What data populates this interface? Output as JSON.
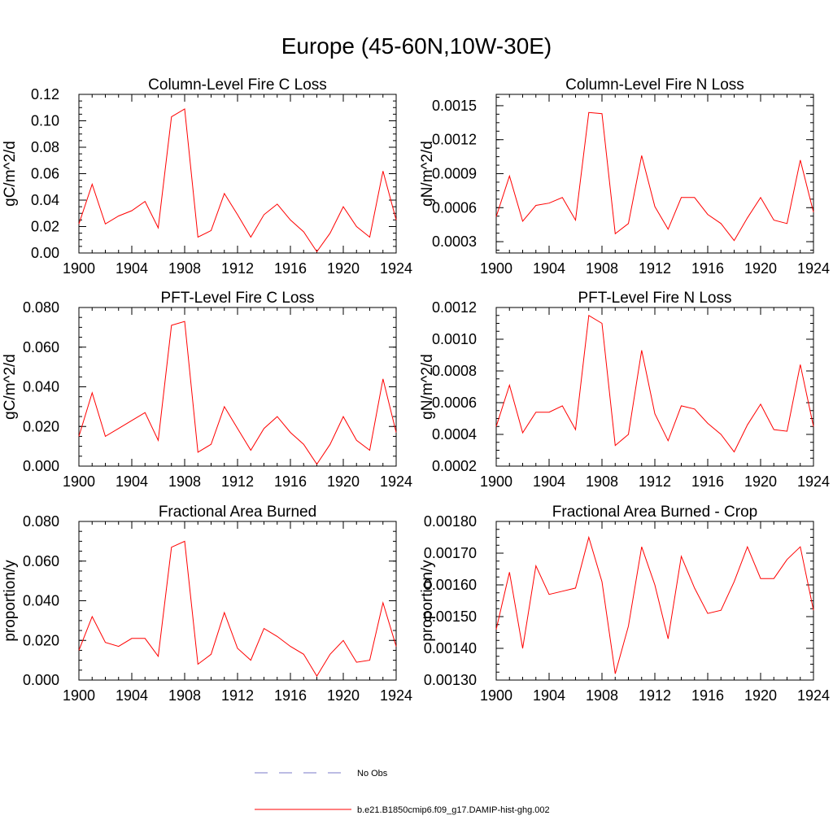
{
  "figure": {
    "title": "Europe (45-60N,10W-30E)",
    "legend": {
      "placement": "bottom-center",
      "entries": [
        {
          "label": "No Obs",
          "color": "#7878c8",
          "dash": "dashed"
        },
        {
          "label": "b.e21.B1850cmip6.f09_g17.DAMIP-hist-ghg.002",
          "color": "#ff0000",
          "dash": "solid"
        }
      ]
    }
  },
  "chart_data": [
    {
      "type": "line",
      "title": "Column-Level Fire C Loss",
      "xlabel": "",
      "ylabel": "gC/m^2/d",
      "xlim": [
        1900,
        1924
      ],
      "ylim": [
        0,
        0.12
      ],
      "xticks": [
        1900,
        1904,
        1908,
        1912,
        1916,
        1920,
        1924
      ],
      "yticks": [
        0,
        0.02,
        0.04,
        0.06,
        0.08,
        0.1,
        0.12
      ],
      "ytick_labels": [
        "0.00",
        "0.02",
        "0.04",
        "0.06",
        "0.08",
        "0.10",
        "0.12"
      ],
      "x": [
        1900,
        1901,
        1902,
        1903,
        1904,
        1905,
        1906,
        1907,
        1908,
        1909,
        1910,
        1911,
        1912,
        1913,
        1914,
        1915,
        1916,
        1917,
        1918,
        1919,
        1920,
        1921,
        1922,
        1923,
        1924
      ],
      "series": [
        {
          "values": [
            0.022,
            0.052,
            0.022,
            0.028,
            0.032,
            0.039,
            0.019,
            0.103,
            0.109,
            0.012,
            0.017,
            0.045,
            0.029,
            0.012,
            0.029,
            0.037,
            0.025,
            0.016,
            0.001,
            0.015,
            0.035,
            0.02,
            0.012,
            0.062,
            0.025
          ],
          "color": "#ff0000"
        }
      ]
    },
    {
      "type": "line",
      "title": "Column-Level Fire N Loss",
      "xlabel": "",
      "ylabel": "gN/m^2/d",
      "xlim": [
        1900,
        1924
      ],
      "ylim": [
        0.0002,
        0.0016
      ],
      "xticks": [
        1900,
        1904,
        1908,
        1912,
        1916,
        1920,
        1924
      ],
      "yticks": [
        0.0003,
        0.0006,
        0.0009,
        0.0012,
        0.0015
      ],
      "ytick_labels": [
        "0.0003",
        "0.0006",
        "0.0009",
        "0.0012",
        "0.0015"
      ],
      "x": [
        1900,
        1901,
        1902,
        1903,
        1904,
        1905,
        1906,
        1907,
        1908,
        1909,
        1910,
        1911,
        1912,
        1913,
        1914,
        1915,
        1916,
        1917,
        1918,
        1919,
        1920,
        1921,
        1922,
        1923,
        1924
      ],
      "series": [
        {
          "values": [
            0.00052,
            0.00088,
            0.00048,
            0.00062,
            0.00064,
            0.00069,
            0.00049,
            0.00144,
            0.00143,
            0.00037,
            0.00046,
            0.00106,
            0.00061,
            0.00041,
            0.00069,
            0.00069,
            0.00054,
            0.00046,
            0.00031,
            0.00051,
            0.00069,
            0.00049,
            0.00046,
            0.00102,
            0.00056
          ],
          "color": "#ff0000"
        }
      ]
    },
    {
      "type": "line",
      "title": "PFT-Level Fire C Loss",
      "xlabel": "",
      "ylabel": "gC/m^2/d",
      "xlim": [
        1900,
        1924
      ],
      "ylim": [
        0,
        0.08
      ],
      "xticks": [
        1900,
        1904,
        1908,
        1912,
        1916,
        1920,
        1924
      ],
      "yticks": [
        0,
        0.02,
        0.04,
        0.06,
        0.08
      ],
      "ytick_labels": [
        "0.000",
        "0.020",
        "0.040",
        "0.060",
        "0.080"
      ],
      "x": [
        1900,
        1901,
        1902,
        1903,
        1904,
        1905,
        1906,
        1907,
        1908,
        1909,
        1910,
        1911,
        1912,
        1913,
        1914,
        1915,
        1916,
        1917,
        1918,
        1919,
        1920,
        1921,
        1922,
        1923,
        1924
      ],
      "series": [
        {
          "values": [
            0.015,
            0.037,
            0.015,
            0.019,
            0.023,
            0.027,
            0.013,
            0.071,
            0.073,
            0.007,
            0.011,
            0.03,
            0.019,
            0.008,
            0.019,
            0.025,
            0.017,
            0.011,
            0.001,
            0.011,
            0.025,
            0.013,
            0.008,
            0.044,
            0.017
          ],
          "color": "#ff0000"
        }
      ]
    },
    {
      "type": "line",
      "title": "PFT-Level Fire N Loss",
      "xlabel": "",
      "ylabel": "gN/m^2/d",
      "xlim": [
        1900,
        1924
      ],
      "ylim": [
        0.0002,
        0.0012
      ],
      "xticks": [
        1900,
        1904,
        1908,
        1912,
        1916,
        1920,
        1924
      ],
      "yticks": [
        0.0002,
        0.0004,
        0.0006,
        0.0008,
        0.001,
        0.0012
      ],
      "ytick_labels": [
        "0.0002",
        "0.0004",
        "0.0006",
        "0.0008",
        "0.0010",
        "0.0012"
      ],
      "x": [
        1900,
        1901,
        1902,
        1903,
        1904,
        1905,
        1906,
        1907,
        1908,
        1909,
        1910,
        1911,
        1912,
        1913,
        1914,
        1915,
        1916,
        1917,
        1918,
        1919,
        1920,
        1921,
        1922,
        1923,
        1924
      ],
      "series": [
        {
          "values": [
            0.00045,
            0.00071,
            0.00041,
            0.00054,
            0.00054,
            0.00058,
            0.00043,
            0.00115,
            0.0011,
            0.00033,
            0.0004,
            0.00093,
            0.00053,
            0.00036,
            0.00058,
            0.00056,
            0.00047,
            0.0004,
            0.00029,
            0.00046,
            0.00059,
            0.00043,
            0.00042,
            0.00084,
            0.00045
          ],
          "color": "#ff0000"
        }
      ]
    },
    {
      "type": "line",
      "title": "Fractional Area Burned",
      "xlabel": "",
      "ylabel": "proportion/y",
      "xlim": [
        1900,
        1924
      ],
      "ylim": [
        0,
        0.08
      ],
      "xticks": [
        1900,
        1904,
        1908,
        1912,
        1916,
        1920,
        1924
      ],
      "yticks": [
        0,
        0.02,
        0.04,
        0.06,
        0.08
      ],
      "ytick_labels": [
        "0.000",
        "0.020",
        "0.040",
        "0.060",
        "0.080"
      ],
      "x": [
        1900,
        1901,
        1902,
        1903,
        1904,
        1905,
        1906,
        1907,
        1908,
        1909,
        1910,
        1911,
        1912,
        1913,
        1914,
        1915,
        1916,
        1917,
        1918,
        1919,
        1920,
        1921,
        1922,
        1923,
        1924
      ],
      "series": [
        {
          "values": [
            0.015,
            0.032,
            0.019,
            0.017,
            0.021,
            0.021,
            0.012,
            0.067,
            0.07,
            0.008,
            0.013,
            0.034,
            0.016,
            0.01,
            0.026,
            0.022,
            0.017,
            0.013,
            0.002,
            0.013,
            0.02,
            0.009,
            0.01,
            0.039,
            0.017
          ],
          "color": "#ff0000"
        }
      ]
    },
    {
      "type": "line",
      "title": "Fractional Area Burned - Crop",
      "xlabel": "",
      "ylabel": "proportion/y",
      "xlim": [
        1900,
        1924
      ],
      "ylim": [
        0.0013,
        0.0018
      ],
      "xticks": [
        1900,
        1904,
        1908,
        1912,
        1916,
        1920,
        1924
      ],
      "yticks": [
        0.0013,
        0.0014,
        0.0015,
        0.0016,
        0.0017,
        0.0018
      ],
      "ytick_labels": [
        "0.00130",
        "0.00140",
        "0.00150",
        "0.00160",
        "0.00170",
        "0.00180"
      ],
      "x": [
        1900,
        1901,
        1902,
        1903,
        1904,
        1905,
        1906,
        1907,
        1908,
        1909,
        1910,
        1911,
        1912,
        1913,
        1914,
        1915,
        1916,
        1917,
        1918,
        1919,
        1920,
        1921,
        1922,
        1923,
        1924
      ],
      "series": [
        {
          "values": [
            0.00146,
            0.00164,
            0.0014,
            0.00166,
            0.00157,
            0.00158,
            0.00159,
            0.00175,
            0.00161,
            0.00132,
            0.00147,
            0.00172,
            0.0016,
            0.00143,
            0.00169,
            0.00159,
            0.00151,
            0.00152,
            0.00161,
            0.00172,
            0.00162,
            0.00162,
            0.00168,
            0.00172,
            0.00152
          ],
          "color": "#ff0000"
        }
      ]
    }
  ]
}
